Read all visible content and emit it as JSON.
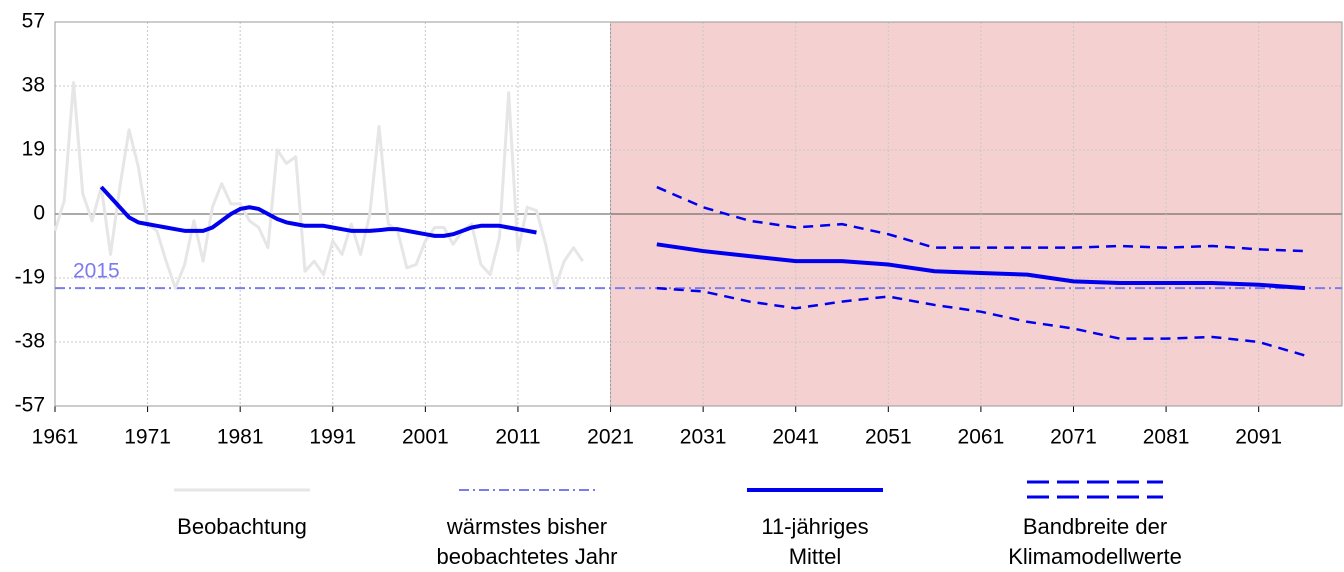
{
  "chart_data": {
    "type": "line",
    "xlim": [
      1961,
      2100
    ],
    "xticks": [
      1961,
      1971,
      1981,
      1991,
      2001,
      2011,
      2021,
      2031,
      2041,
      2051,
      2061,
      2071,
      2081,
      2091
    ],
    "ylim": [
      -57,
      57
    ],
    "yticks": [
      57,
      38,
      19,
      0,
      -19,
      -38,
      -57
    ],
    "grid": true,
    "shade": {
      "from": 2021,
      "to": 2100,
      "color": "#f5d0d0"
    },
    "reference": {
      "name": "wärmstes bisher beobachtetes Jahr",
      "label": "2015",
      "value": -22,
      "color": "#7b7bf0"
    },
    "series": [
      {
        "name": "Beobachtung",
        "color": "#e6e6e6",
        "style": "solid",
        "x": [
          1961,
          1962,
          1963,
          1964,
          1965,
          1966,
          1967,
          1968,
          1969,
          1970,
          1971,
          1972,
          1973,
          1974,
          1975,
          1976,
          1977,
          1978,
          1979,
          1980,
          1981,
          1982,
          1983,
          1984,
          1985,
          1986,
          1987,
          1988,
          1989,
          1990,
          1991,
          1992,
          1993,
          1994,
          1995,
          1996,
          1997,
          1998,
          1999,
          2000,
          2001,
          2002,
          2003,
          2004,
          2005,
          2006,
          2007,
          2008,
          2009,
          2010,
          2011,
          2012,
          2013,
          2014,
          2015,
          2016,
          2017,
          2018
        ],
        "values": [
          -5,
          4,
          39,
          6,
          -2,
          8,
          -12,
          8,
          25,
          14,
          -3,
          -5,
          -14,
          -22,
          -15,
          -2,
          -14,
          2,
          9,
          3,
          3,
          -2,
          -4,
          -10,
          19,
          15,
          17,
          -17,
          -14,
          -18,
          -8,
          -12,
          -3,
          -12,
          0,
          26,
          -3,
          -5,
          -16,
          -15,
          -8,
          -4,
          -4,
          -9,
          -5,
          -3,
          -15,
          -18,
          -7,
          36,
          -11,
          2,
          1,
          -9,
          -22,
          -14,
          -10,
          -14
        ]
      },
      {
        "name": "11-jähriges Mittel",
        "color": "#0000ee",
        "style": "bold",
        "x": [
          1966,
          1967,
          1968,
          1969,
          1970,
          1971,
          1972,
          1973,
          1974,
          1975,
          1976,
          1977,
          1978,
          1979,
          1980,
          1981,
          1982,
          1983,
          1984,
          1985,
          1986,
          1987,
          1988,
          1989,
          1990,
          1991,
          1992,
          1993,
          1994,
          1995,
          1996,
          1997,
          1998,
          1999,
          2000,
          2001,
          2002,
          2003,
          2004,
          2005,
          2006,
          2007,
          2008,
          2009,
          2010,
          2011,
          2012,
          2013
        ],
        "values": [
          8,
          5,
          2,
          -1,
          -2.5,
          -3,
          -3.5,
          -4,
          -4.5,
          -5,
          -5,
          -5,
          -4,
          -2,
          0,
          1.5,
          2,
          1.5,
          0,
          -1.5,
          -2.5,
          -3,
          -3.5,
          -3.5,
          -3.5,
          -4,
          -4.5,
          -5,
          -5,
          -5,
          -4.8,
          -4.5,
          -4.5,
          -5,
          -5.5,
          -6,
          -6.5,
          -6.5,
          -6,
          -5,
          -4,
          -3.5,
          -3.5,
          -3.5,
          -4,
          -4.5,
          -5,
          -5.5
        ]
      },
      {
        "name": "11-jähriges Mittel",
        "color": "#0000ee",
        "style": "bold",
        "x": [
          2026,
          2031,
          2036,
          2041,
          2046,
          2051,
          2056,
          2061,
          2066,
          2071,
          2076,
          2081,
          2086,
          2091,
          2096
        ],
        "values": [
          -9,
          -11,
          -12.5,
          -14,
          -14,
          -15,
          -17,
          -17.5,
          -18,
          -20,
          -20.5,
          -20.5,
          -20.5,
          -21,
          -22
        ]
      },
      {
        "name": "Bandbreite der Klimamodellwerte",
        "color": "#0000ee",
        "style": "dashed",
        "x": [
          2026,
          2031,
          2036,
          2041,
          2046,
          2051,
          2056,
          2061,
          2066,
          2071,
          2076,
          2081,
          2086,
          2091,
          2096
        ],
        "upper": [
          8,
          2,
          -2,
          -4,
          -3,
          -6,
          -10,
          -10,
          -10,
          -10,
          -9.5,
          -10,
          -9.5,
          -10.5,
          -11
        ],
        "lower": [
          -22,
          -23,
          -26,
          -28,
          -26,
          -24.5,
          -27,
          -29,
          -32,
          -34,
          -37,
          -37,
          -36.5,
          -38,
          -42
        ]
      }
    ]
  }
}
